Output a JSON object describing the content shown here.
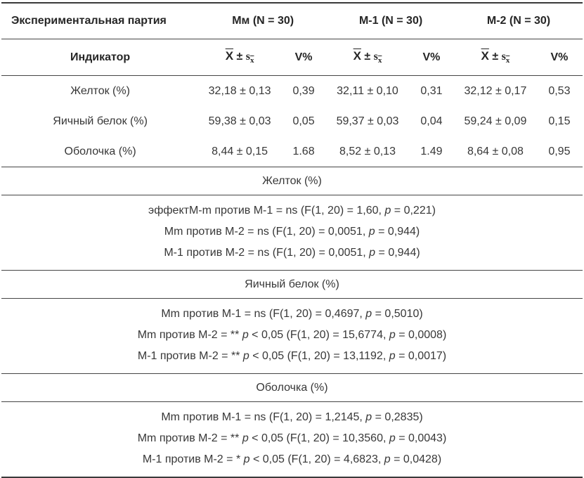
{
  "table": {
    "group_header": {
      "col1": "Экспериментальная партия",
      "groups": [
        "Мм (N = 30)",
        "М-1 (N = 30)",
        "М-2 (N = 30)"
      ]
    },
    "sub_header": {
      "col1": "Индикатор",
      "mean": {
        "x": "X",
        "pm": "±",
        "s": "s",
        "sub": "x"
      },
      "v": "V%"
    },
    "rows": [
      {
        "label": "Желток (%)",
        "values": [
          "32,18 ± 0,13",
          "0,39",
          "32,11 ± 0,10",
          "0,31",
          "32,12 ± 0,17",
          "0,53"
        ]
      },
      {
        "label": "Яичный белок (%)",
        "values": [
          "59,38 ± 0,03",
          "0,05",
          "59,37 ± 0,03",
          "0,04",
          "59,24 ± 0,09",
          "0,15"
        ]
      },
      {
        "label": "Оболочка (%)",
        "values": [
          "8,44 ± 0,15",
          "1.68",
          "8,52 ± 0,13",
          "1.49",
          "8,64 ± 0,08",
          "0,95"
        ]
      }
    ],
    "sections": [
      {
        "title": "Желток (%)",
        "lines": [
          [
            {
              "t": "эффектМ-m против М-1 = ns (F(1, 20) = 1,60, "
            },
            {
              "t": "p",
              "i": true
            },
            {
              "t": " = 0,221)"
            }
          ],
          [
            {
              "t": "Mm против М-2 = ns (F(1, 20) = 0,0051, "
            },
            {
              "t": "p",
              "i": true
            },
            {
              "t": " = 0,944)"
            }
          ],
          [
            {
              "t": "М-1 против М-2 = ns (F(1, 20) = 0,0051, "
            },
            {
              "t": "p",
              "i": true
            },
            {
              "t": " = 0,944)"
            }
          ]
        ]
      },
      {
        "title": "Яичный белок (%)",
        "lines": [
          [
            {
              "t": "Mm против М-1 = ns (F(1, 20) = 0,4697, "
            },
            {
              "t": "p",
              "i": true
            },
            {
              "t": " = 0,5010)"
            }
          ],
          [
            {
              "t": "Mm против М-2 = ** "
            },
            {
              "t": "p",
              "i": true
            },
            {
              "t": " < 0,05 (F(1, 20) = 15,6774, "
            },
            {
              "t": "p",
              "i": true
            },
            {
              "t": " = 0,0008)"
            }
          ],
          [
            {
              "t": "М-1 против М-2 = ** "
            },
            {
              "t": "p",
              "i": true
            },
            {
              "t": " < 0,05 (F(1, 20) = 13,1192, "
            },
            {
              "t": "p",
              "i": true
            },
            {
              "t": " = 0,0017)"
            }
          ]
        ]
      },
      {
        "title": "Оболочка (%)",
        "lines": [
          [
            {
              "t": "Mm против М-1 = ns (F(1, 20) = 1,2145, "
            },
            {
              "t": "p",
              "i": true
            },
            {
              "t": " = 0,2835)"
            }
          ],
          [
            {
              "t": "Mm против М-2 = ** "
            },
            {
              "t": "p",
              "i": true
            },
            {
              "t": " < 0,05 (F(1, 20) = 10,3560, "
            },
            {
              "t": "p",
              "i": true
            },
            {
              "t": " = 0,0043)"
            }
          ],
          [
            {
              "t": "М-1 против М-2 = * "
            },
            {
              "t": "p",
              "i": true
            },
            {
              "t": " < 0,05 (F(1, 20) = 4,6823, "
            },
            {
              "t": "p",
              "i": true
            },
            {
              "t": " = 0,0428)"
            }
          ]
        ]
      }
    ]
  }
}
